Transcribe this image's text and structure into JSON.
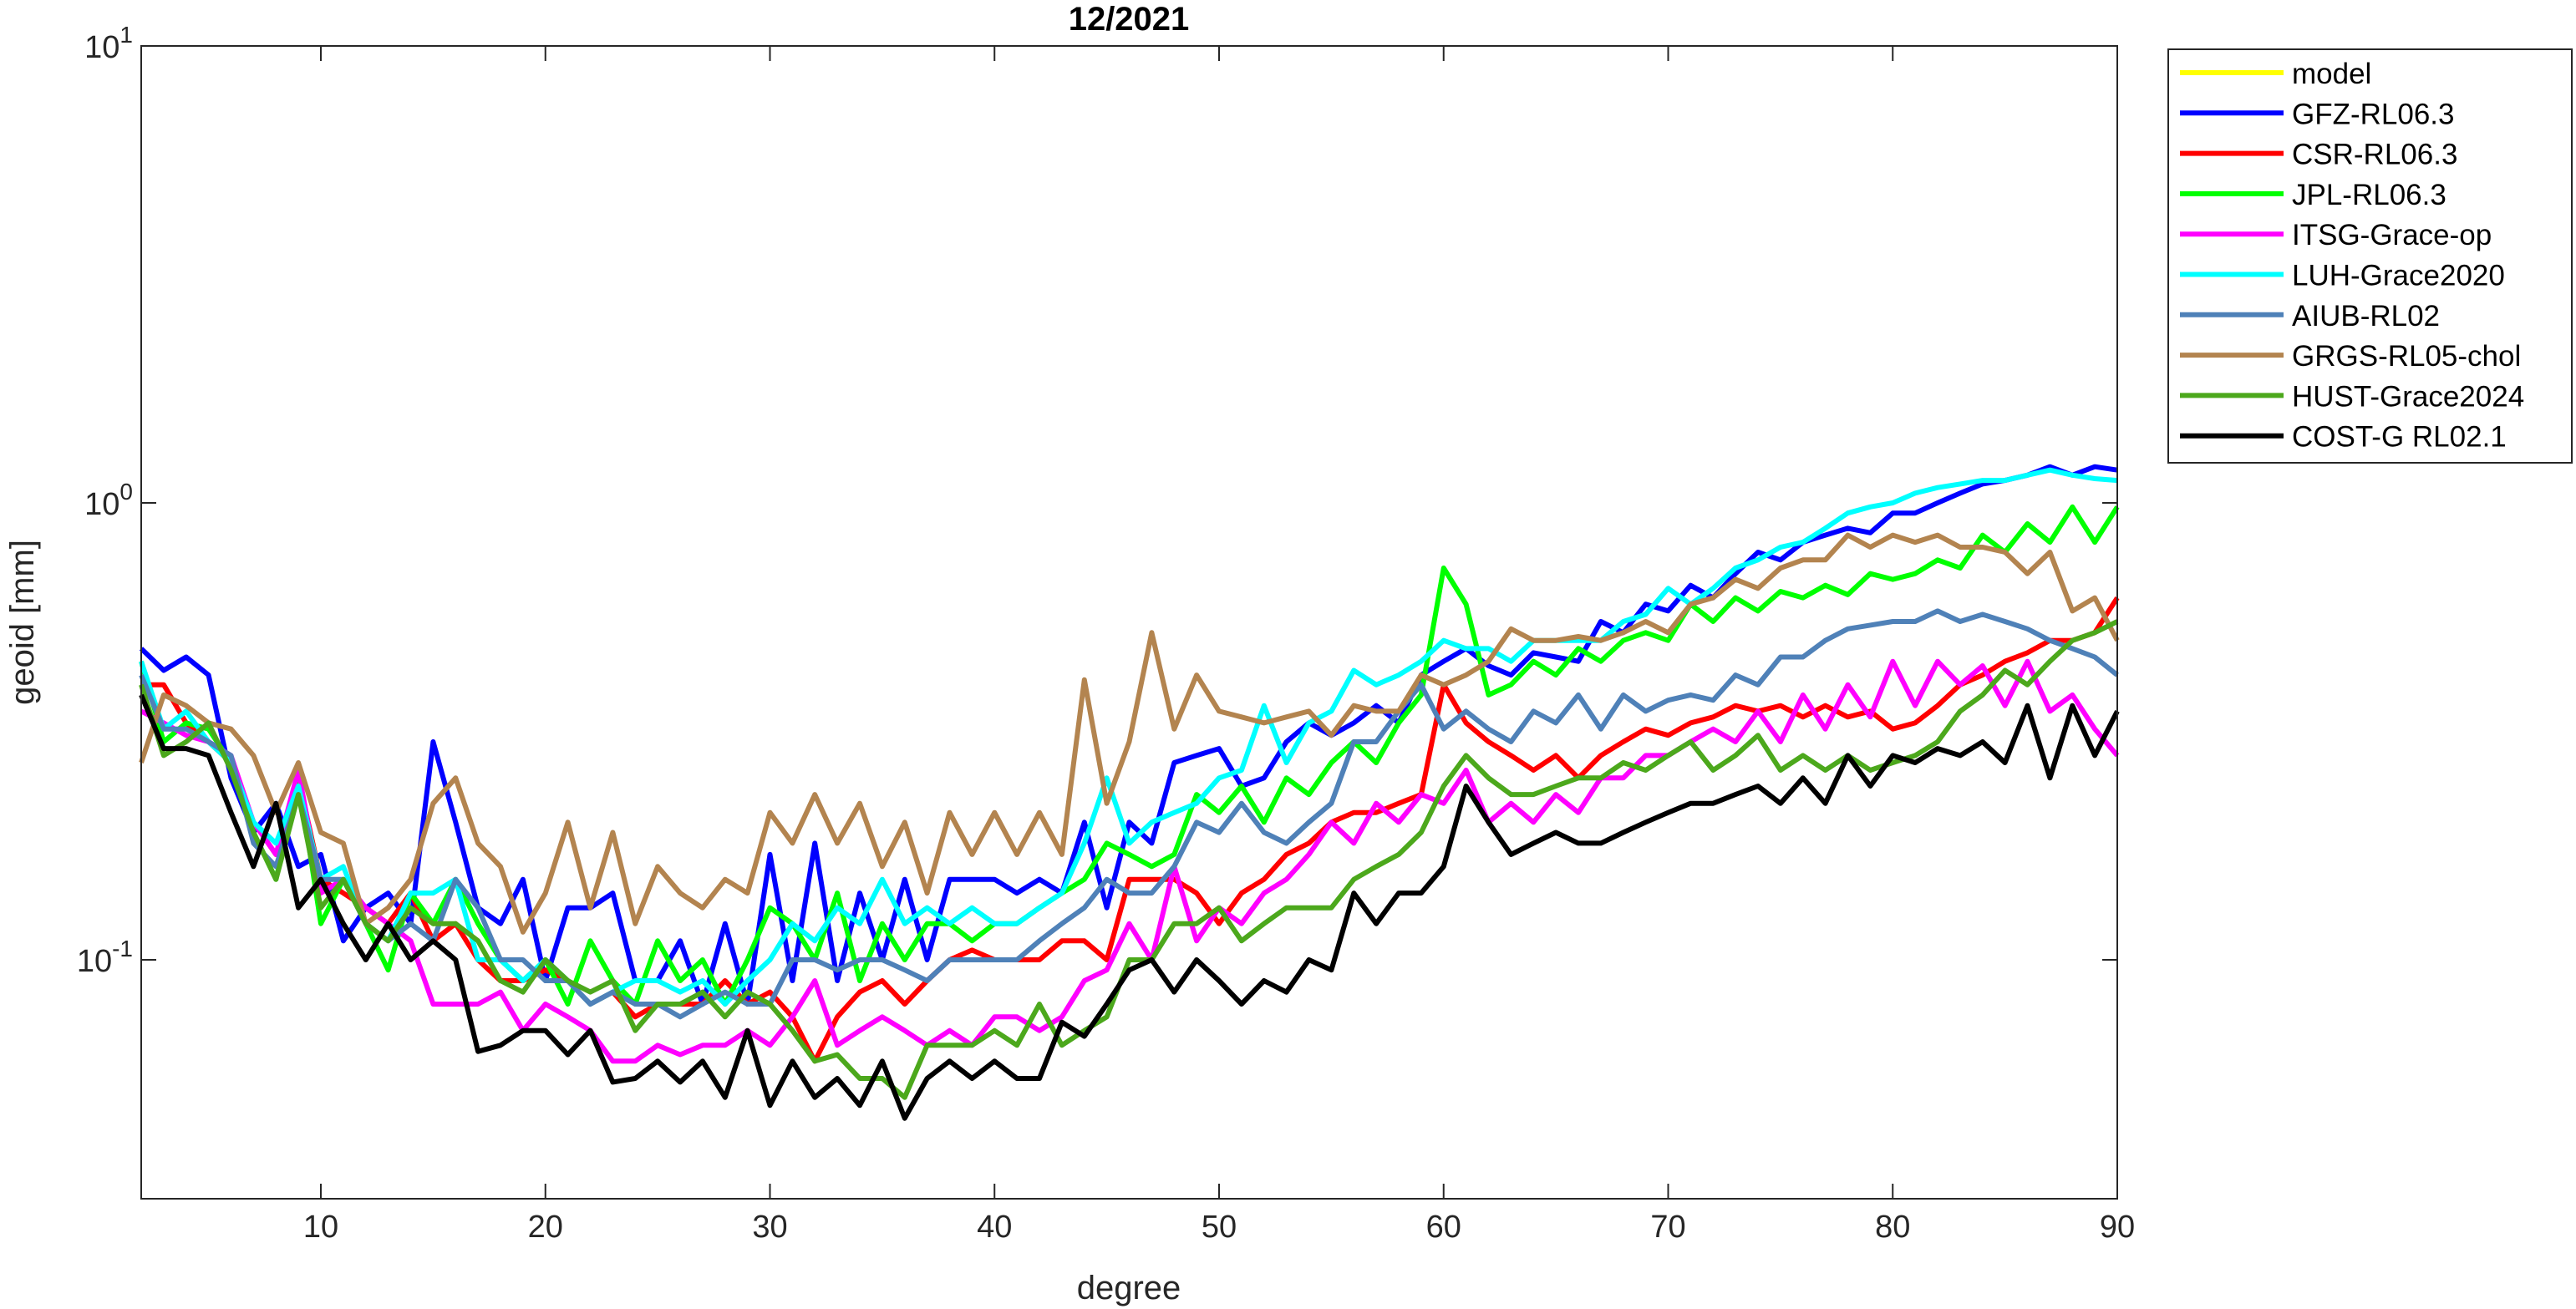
{
  "chart_data": {
    "type": "line",
    "title": "12/2021",
    "xlabel": "degree",
    "ylabel": "geoid [mm]",
    "log_y": true,
    "legend": "outside-right",
    "xlim": [
      2,
      90
    ],
    "xticks": [
      10,
      20,
      30,
      40,
      50,
      60,
      70,
      80,
      90
    ],
    "ylim": [
      0.03,
      10
    ],
    "yticks": [
      {
        "value": 0.1,
        "label": "10",
        "exponent": "-1"
      },
      {
        "value": 1,
        "label": "10",
        "exponent": "0"
      },
      {
        "value": 10,
        "label": "10",
        "exponent": "1"
      }
    ],
    "x": [
      2,
      3,
      4,
      5,
      6,
      7,
      8,
      9,
      10,
      11,
      12,
      13,
      14,
      15,
      16,
      17,
      18,
      19,
      20,
      21,
      22,
      23,
      24,
      25,
      26,
      27,
      28,
      29,
      30,
      31,
      32,
      33,
      34,
      35,
      36,
      37,
      38,
      39,
      40,
      41,
      42,
      43,
      44,
      45,
      46,
      47,
      48,
      49,
      50,
      51,
      52,
      53,
      54,
      55,
      56,
      57,
      58,
      59,
      60,
      61,
      62,
      63,
      64,
      65,
      66,
      67,
      68,
      69,
      70,
      71,
      72,
      73,
      74,
      75,
      76,
      77,
      78,
      79,
      80,
      81,
      82,
      83,
      84,
      85,
      86,
      87,
      88,
      89,
      90
    ],
    "series": [
      {
        "name": "model",
        "color": "#ffff00",
        "values": [
          null,
          null,
          null,
          null,
          null,
          null,
          null,
          null,
          null,
          null,
          null,
          null,
          null,
          null,
          null,
          null,
          null,
          null,
          null,
          null,
          null,
          null,
          null,
          null,
          null,
          null,
          null,
          null,
          null,
          null,
          null,
          null,
          null,
          null,
          null,
          null,
          null,
          null,
          null,
          null,
          null,
          null,
          null,
          null,
          null,
          null,
          null,
          null,
          null,
          null,
          null,
          null,
          null,
          null,
          null,
          null,
          null,
          null,
          null,
          null,
          null,
          null,
          null,
          null,
          null,
          null,
          null,
          null,
          null,
          null,
          null,
          null,
          null,
          null,
          null,
          null,
          null,
          null,
          null,
          null,
          null,
          null,
          null,
          null,
          null,
          null,
          null,
          null,
          null
        ]
      },
      {
        "name": "GFZ-RL06.3",
        "color": "#0000ff",
        "values": [
          0.48,
          0.43,
          0.46,
          0.42,
          0.25,
          0.19,
          0.22,
          0.16,
          0.17,
          0.11,
          0.13,
          0.14,
          0.12,
          0.3,
          0.2,
          0.13,
          0.12,
          0.15,
          0.09,
          0.13,
          0.13,
          0.14,
          0.09,
          0.09,
          0.11,
          0.08,
          0.12,
          0.08,
          0.17,
          0.09,
          0.18,
          0.09,
          0.14,
          0.1,
          0.15,
          0.1,
          0.15,
          0.15,
          0.15,
          0.14,
          0.15,
          0.14,
          0.2,
          0.13,
          0.2,
          0.18,
          0.27,
          0.28,
          0.29,
          0.24,
          0.25,
          0.3,
          0.33,
          0.31,
          0.33,
          0.36,
          0.33,
          0.42,
          0.45,
          0.48,
          0.44,
          0.42,
          0.47,
          0.46,
          0.45,
          0.55,
          0.52,
          0.6,
          0.58,
          0.66,
          0.62,
          0.7,
          0.78,
          0.75,
          0.82,
          0.85,
          0.88,
          0.86,
          0.95,
          0.95,
          1.0,
          1.05,
          1.1,
          1.12,
          1.15,
          1.2,
          1.15,
          1.2,
          1.18
        ]
      },
      {
        "name": "CSR-RL06.3",
        "color": "#ff0000",
        "values": [
          0.4,
          0.4,
          0.33,
          0.3,
          0.27,
          0.2,
          0.17,
          0.25,
          0.15,
          0.14,
          0.13,
          0.12,
          0.14,
          0.11,
          0.12,
          0.1,
          0.09,
          0.09,
          0.095,
          0.09,
          0.08,
          0.085,
          0.075,
          0.08,
          0.08,
          0.08,
          0.09,
          0.08,
          0.085,
          0.075,
          0.06,
          0.075,
          0.085,
          0.09,
          0.08,
          0.09,
          0.1,
          0.105,
          0.1,
          0.1,
          0.1,
          0.11,
          0.11,
          0.1,
          0.15,
          0.15,
          0.15,
          0.14,
          0.12,
          0.14,
          0.15,
          0.17,
          0.18,
          0.2,
          0.21,
          0.21,
          0.22,
          0.23,
          0.4,
          0.33,
          0.3,
          0.28,
          0.26,
          0.28,
          0.25,
          0.28,
          0.3,
          0.32,
          0.31,
          0.33,
          0.34,
          0.36,
          0.35,
          0.36,
          0.34,
          0.36,
          0.34,
          0.35,
          0.32,
          0.33,
          0.36,
          0.4,
          0.42,
          0.45,
          0.47,
          0.5,
          0.5,
          0.52,
          0.62
        ]
      },
      {
        "name": "JPL-RL06.3",
        "color": "#00ff00",
        "values": [
          0.45,
          0.3,
          0.33,
          0.32,
          0.27,
          0.19,
          0.15,
          0.25,
          0.12,
          0.15,
          0.12,
          0.095,
          0.14,
          0.12,
          0.15,
          0.12,
          0.1,
          0.09,
          0.1,
          0.08,
          0.11,
          0.09,
          0.08,
          0.11,
          0.09,
          0.1,
          0.08,
          0.1,
          0.13,
          0.12,
          0.1,
          0.14,
          0.09,
          0.12,
          0.1,
          0.12,
          0.12,
          0.11,
          0.12,
          0.12,
          0.13,
          0.14,
          0.15,
          0.18,
          0.17,
          0.16,
          0.17,
          0.23,
          0.21,
          0.24,
          0.2,
          0.25,
          0.23,
          0.27,
          0.3,
          0.27,
          0.33,
          0.38,
          0.72,
          0.6,
          0.38,
          0.4,
          0.45,
          0.42,
          0.48,
          0.45,
          0.5,
          0.52,
          0.5,
          0.6,
          0.55,
          0.62,
          0.58,
          0.64,
          0.62,
          0.66,
          0.63,
          0.7,
          0.68,
          0.7,
          0.75,
          0.72,
          0.85,
          0.78,
          0.9,
          0.82,
          0.98,
          0.82,
          0.98
        ]
      },
      {
        "name": "ITSG-Grace-op",
        "color": "#ff00ff",
        "values": [
          0.35,
          0.33,
          0.31,
          0.3,
          0.28,
          0.2,
          0.17,
          0.26,
          0.14,
          0.15,
          0.13,
          0.12,
          0.11,
          0.08,
          0.08,
          0.08,
          0.085,
          0.07,
          0.08,
          0.075,
          0.07,
          0.06,
          0.06,
          0.065,
          0.062,
          0.065,
          0.065,
          0.07,
          0.065,
          0.075,
          0.09,
          0.065,
          0.07,
          0.075,
          0.07,
          0.065,
          0.07,
          0.065,
          0.075,
          0.075,
          0.07,
          0.075,
          0.09,
          0.095,
          0.12,
          0.1,
          0.16,
          0.11,
          0.13,
          0.12,
          0.14,
          0.15,
          0.17,
          0.2,
          0.18,
          0.22,
          0.2,
          0.23,
          0.22,
          0.26,
          0.2,
          0.22,
          0.2,
          0.23,
          0.21,
          0.25,
          0.25,
          0.28,
          0.28,
          0.3,
          0.32,
          0.3,
          0.35,
          0.3,
          0.38,
          0.32,
          0.4,
          0.34,
          0.45,
          0.36,
          0.45,
          0.4,
          0.44,
          0.36,
          0.45,
          0.35,
          0.38,
          0.32,
          0.28
        ]
      },
      {
        "name": "LUH-Grace2020",
        "color": "#00ffff",
        "values": [
          0.45,
          0.32,
          0.35,
          0.3,
          0.27,
          0.2,
          0.18,
          0.24,
          0.15,
          0.16,
          0.12,
          0.11,
          0.14,
          0.14,
          0.15,
          0.1,
          0.1,
          0.09,
          0.1,
          0.09,
          0.08,
          0.085,
          0.09,
          0.09,
          0.085,
          0.09,
          0.08,
          0.09,
          0.1,
          0.12,
          0.11,
          0.13,
          0.12,
          0.15,
          0.12,
          0.13,
          0.12,
          0.13,
          0.12,
          0.12,
          0.13,
          0.14,
          0.18,
          0.25,
          0.18,
          0.2,
          0.21,
          0.22,
          0.25,
          0.26,
          0.36,
          0.27,
          0.33,
          0.35,
          0.43,
          0.4,
          0.42,
          0.45,
          0.5,
          0.48,
          0.48,
          0.45,
          0.5,
          0.5,
          0.5,
          0.5,
          0.55,
          0.57,
          0.65,
          0.6,
          0.65,
          0.72,
          0.75,
          0.8,
          0.82,
          0.88,
          0.95,
          0.98,
          1.0,
          1.05,
          1.08,
          1.1,
          1.12,
          1.12,
          1.15,
          1.18,
          1.15,
          1.13,
          1.12
        ]
      },
      {
        "name": "AIUB-RL02",
        "color": "#4f81b8",
        "values": [
          0.42,
          0.32,
          0.32,
          0.3,
          0.28,
          0.18,
          0.16,
          0.23,
          0.15,
          0.15,
          0.12,
          0.11,
          0.12,
          0.11,
          0.15,
          0.13,
          0.1,
          0.1,
          0.09,
          0.09,
          0.08,
          0.085,
          0.08,
          0.08,
          0.075,
          0.08,
          0.085,
          0.08,
          0.08,
          0.1,
          0.1,
          0.095,
          0.1,
          0.1,
          0.095,
          0.09,
          0.1,
          0.1,
          0.1,
          0.1,
          0.11,
          0.12,
          0.13,
          0.15,
          0.14,
          0.14,
          0.16,
          0.2,
          0.19,
          0.22,
          0.19,
          0.18,
          0.2,
          0.22,
          0.3,
          0.3,
          0.35,
          0.4,
          0.32,
          0.35,
          0.32,
          0.3,
          0.35,
          0.33,
          0.38,
          0.32,
          0.38,
          0.35,
          0.37,
          0.38,
          0.37,
          0.42,
          0.4,
          0.46,
          0.46,
          0.5,
          0.53,
          0.54,
          0.55,
          0.55,
          0.58,
          0.55,
          0.57,
          0.55,
          0.53,
          0.5,
          0.48,
          0.46,
          0.42
        ]
      },
      {
        "name": "GRGS-RL05-chol",
        "color": "#b3844f",
        "values": [
          0.27,
          0.38,
          0.36,
          0.33,
          0.32,
          0.28,
          0.21,
          0.27,
          0.19,
          0.18,
          0.12,
          0.13,
          0.15,
          0.22,
          0.25,
          0.18,
          0.16,
          0.115,
          0.14,
          0.2,
          0.13,
          0.19,
          0.12,
          0.16,
          0.14,
          0.13,
          0.15,
          0.14,
          0.21,
          0.18,
          0.23,
          0.18,
          0.22,
          0.16,
          0.2,
          0.14,
          0.21,
          0.17,
          0.21,
          0.17,
          0.21,
          0.17,
          0.41,
          0.22,
          0.3,
          0.52,
          0.32,
          0.42,
          0.35,
          0.34,
          0.33,
          0.34,
          0.35,
          0.31,
          0.36,
          0.35,
          0.35,
          0.42,
          0.4,
          0.42,
          0.45,
          0.53,
          0.5,
          0.5,
          0.51,
          0.5,
          0.52,
          0.55,
          0.52,
          0.6,
          0.62,
          0.68,
          0.65,
          0.72,
          0.75,
          0.75,
          0.85,
          0.8,
          0.85,
          0.82,
          0.85,
          0.8,
          0.8,
          0.78,
          0.7,
          0.78,
          0.58,
          0.62,
          0.5
        ]
      },
      {
        "name": "HUST-Grace2024",
        "color": "#4ca81c",
        "values": [
          0.4,
          0.28,
          0.3,
          0.33,
          0.26,
          0.19,
          0.15,
          0.23,
          0.13,
          0.15,
          0.12,
          0.11,
          0.13,
          0.12,
          0.12,
          0.11,
          0.09,
          0.085,
          0.1,
          0.09,
          0.085,
          0.09,
          0.07,
          0.08,
          0.08,
          0.085,
          0.075,
          0.085,
          0.08,
          0.07,
          0.06,
          0.062,
          0.055,
          0.055,
          0.05,
          0.065,
          0.065,
          0.065,
          0.07,
          0.065,
          0.08,
          0.065,
          0.07,
          0.075,
          0.1,
          0.1,
          0.12,
          0.12,
          0.13,
          0.11,
          0.12,
          0.13,
          0.13,
          0.13,
          0.15,
          0.16,
          0.17,
          0.19,
          0.24,
          0.28,
          0.25,
          0.23,
          0.23,
          0.24,
          0.25,
          0.25,
          0.27,
          0.26,
          0.28,
          0.3,
          0.26,
          0.28,
          0.31,
          0.26,
          0.28,
          0.26,
          0.28,
          0.26,
          0.27,
          0.28,
          0.3,
          0.35,
          0.38,
          0.43,
          0.4,
          0.45,
          0.5,
          0.52,
          0.55
        ]
      },
      {
        "name": "COST-G RL02.1",
        "color": "#000000",
        "values": [
          0.38,
          0.29,
          0.29,
          0.28,
          0.21,
          0.16,
          0.22,
          0.13,
          0.15,
          0.12,
          0.1,
          0.12,
          0.1,
          0.11,
          0.1,
          0.063,
          0.065,
          0.07,
          0.07,
          0.062,
          0.07,
          0.054,
          0.055,
          0.06,
          0.054,
          0.06,
          0.05,
          0.07,
          0.048,
          0.06,
          0.05,
          0.055,
          0.048,
          0.06,
          0.045,
          0.055,
          0.06,
          0.055,
          0.06,
          0.055,
          0.055,
          0.073,
          0.068,
          0.08,
          0.095,
          0.1,
          0.085,
          0.1,
          0.09,
          0.08,
          0.09,
          0.085,
          0.1,
          0.095,
          0.14,
          0.12,
          0.14,
          0.14,
          0.16,
          0.24,
          0.2,
          0.17,
          0.18,
          0.19,
          0.18,
          0.18,
          0.19,
          0.2,
          0.21,
          0.22,
          0.22,
          0.23,
          0.24,
          0.22,
          0.25,
          0.22,
          0.28,
          0.24,
          0.28,
          0.27,
          0.29,
          0.28,
          0.3,
          0.27,
          0.36,
          0.25,
          0.36,
          0.28,
          0.35
        ]
      }
    ]
  }
}
